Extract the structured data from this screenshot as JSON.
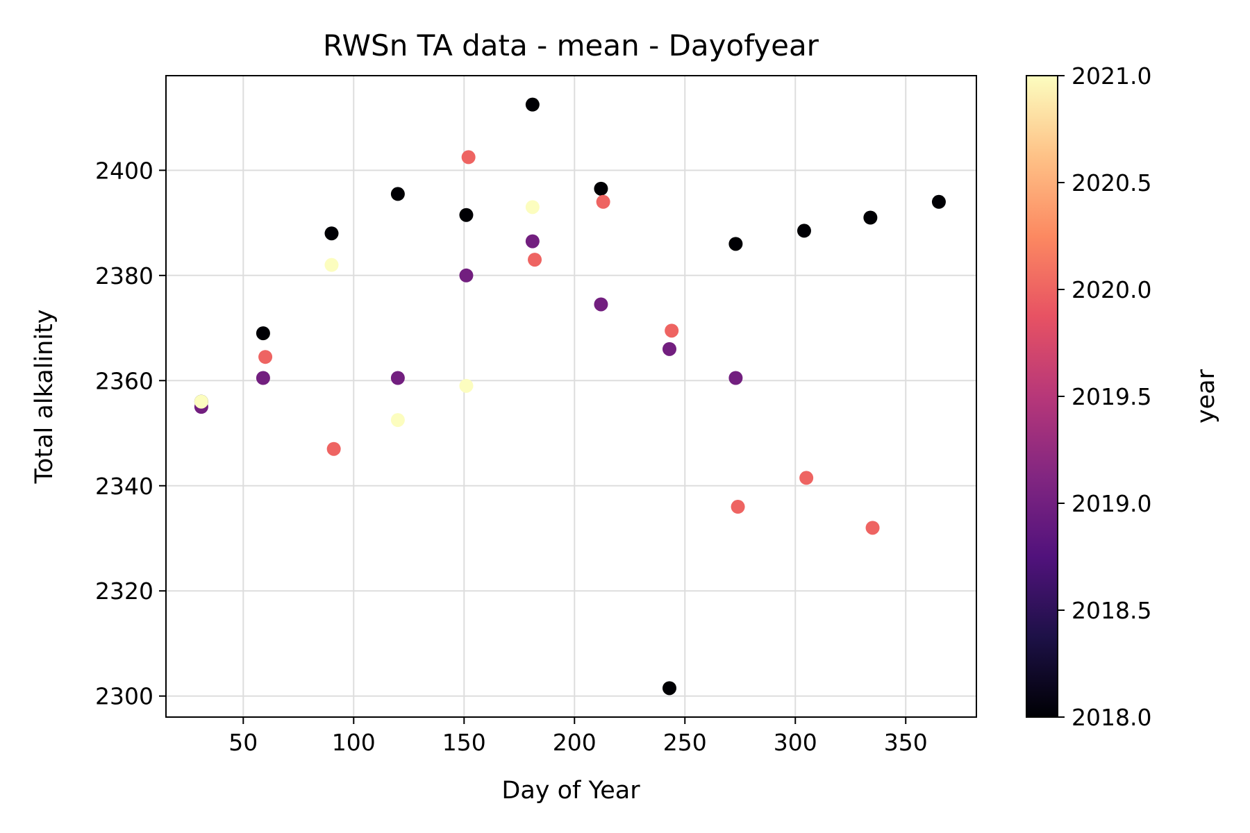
{
  "chart_data": {
    "type": "scatter",
    "title": "RWSn TA data - mean - Dayofyear",
    "xlabel": "Day of Year",
    "ylabel": "Total alkalinity",
    "xlim": [
      15,
      382
    ],
    "ylim": [
      2296,
      2418
    ],
    "xticks": [
      50,
      100,
      150,
      200,
      250,
      300,
      350
    ],
    "yticks": [
      2300,
      2320,
      2340,
      2360,
      2380,
      2400
    ],
    "grid": true,
    "colormap": "magma",
    "colorbar": {
      "label": "year",
      "min": 2018.0,
      "max": 2021.0,
      "ticks": [
        "2018.0",
        "2018.5",
        "2019.0",
        "2019.5",
        "2020.0",
        "2020.5",
        "2021.0"
      ]
    },
    "points": [
      {
        "x": 31,
        "y": 2356,
        "year": 2018
      },
      {
        "x": 59,
        "y": 2369,
        "year": 2018
      },
      {
        "x": 90,
        "y": 2388,
        "year": 2018
      },
      {
        "x": 120,
        "y": 2395.5,
        "year": 2018
      },
      {
        "x": 151,
        "y": 2391.5,
        "year": 2018
      },
      {
        "x": 181,
        "y": 2412.5,
        "year": 2018
      },
      {
        "x": 212,
        "y": 2396.5,
        "year": 2018
      },
      {
        "x": 243,
        "y": 2301.5,
        "year": 2018
      },
      {
        "x": 273,
        "y": 2386,
        "year": 2018
      },
      {
        "x": 304,
        "y": 2388.5,
        "year": 2018
      },
      {
        "x": 334,
        "y": 2391,
        "year": 2018
      },
      {
        "x": 365,
        "y": 2394,
        "year": 2018
      },
      {
        "x": 31,
        "y": 2355,
        "year": 2019
      },
      {
        "x": 59,
        "y": 2360.5,
        "year": 2019
      },
      {
        "x": 120,
        "y": 2360.5,
        "year": 2019
      },
      {
        "x": 151,
        "y": 2380,
        "year": 2019
      },
      {
        "x": 181,
        "y": 2386.5,
        "year": 2019
      },
      {
        "x": 212,
        "y": 2374.5,
        "year": 2019
      },
      {
        "x": 243,
        "y": 2366,
        "year": 2019
      },
      {
        "x": 273,
        "y": 2360.5,
        "year": 2019
      },
      {
        "x": 60,
        "y": 2364.5,
        "year": 2020
      },
      {
        "x": 91,
        "y": 2347,
        "year": 2020
      },
      {
        "x": 152,
        "y": 2402.5,
        "year": 2020
      },
      {
        "x": 182,
        "y": 2383,
        "year": 2020
      },
      {
        "x": 213,
        "y": 2394,
        "year": 2020
      },
      {
        "x": 244,
        "y": 2369.5,
        "year": 2020
      },
      {
        "x": 274,
        "y": 2336,
        "year": 2020
      },
      {
        "x": 305,
        "y": 2341.5,
        "year": 2020
      },
      {
        "x": 335,
        "y": 2332,
        "year": 2020
      },
      {
        "x": 31,
        "y": 2356,
        "year": 2021
      },
      {
        "x": 90,
        "y": 2382,
        "year": 2021
      },
      {
        "x": 120,
        "y": 2352.5,
        "year": 2021
      },
      {
        "x": 151,
        "y": 2359,
        "year": 2021
      },
      {
        "x": 181,
        "y": 2393,
        "year": 2021
      }
    ]
  }
}
